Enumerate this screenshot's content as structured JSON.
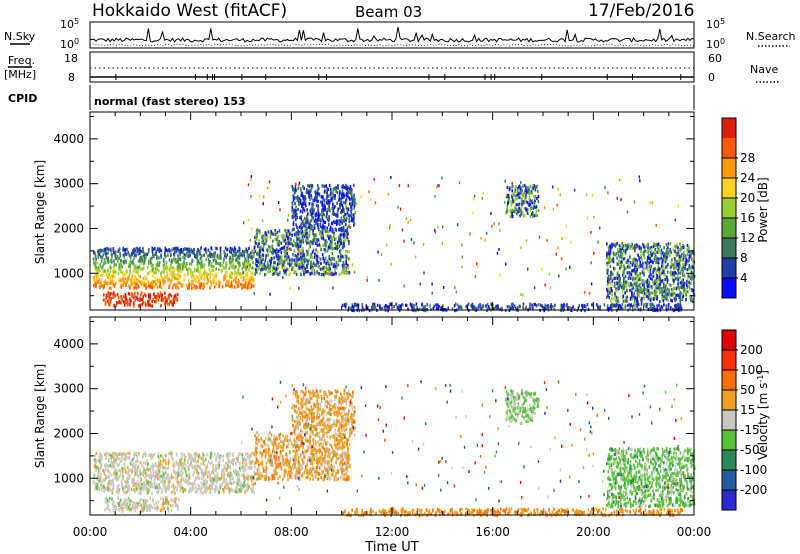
{
  "header": {
    "site": "Hokkaido West (fitACF)",
    "beam": "Beam 03",
    "date": "17/Feb/2016"
  },
  "noise_panel": {
    "left_label": "N.Sky",
    "right_label": "N.Search",
    "tick_top": "10^5",
    "tick_bottom": "10^0"
  },
  "freq_panel": {
    "label_line1": "Freq.",
    "label_line2": "[MHz]",
    "right_label": "Nave",
    "left_ticks": [
      "18",
      "8"
    ],
    "right_ticks": [
      "60",
      "0"
    ]
  },
  "cpid": {
    "label": "CPID",
    "text": "normal (fast stereo) 153"
  },
  "chart_data": [
    {
      "type": "heatmap",
      "quantity": "Power",
      "ylabel": "Slant Range [km]",
      "xlabel": "Time UT",
      "x_ticks": [
        "00:00",
        "04:00",
        "08:00",
        "12:00",
        "16:00",
        "20:00",
        "00:00"
      ],
      "xlim_hours": [
        0,
        24
      ],
      "ylim_km": [
        180,
        4600
      ],
      "y_ticks": [
        1000,
        2000,
        3000,
        4000
      ],
      "colorbar": {
        "label": "Power [dB]",
        "ticks": [
          "4",
          "8",
          "12",
          "16",
          "20",
          "24",
          "28"
        ],
        "range": [
          0,
          30
        ],
        "colors": [
          "#0a0aff",
          "#1f3ea8",
          "#3c7a5e",
          "#5aa83c",
          "#9acd32",
          "#ffd21f",
          "#ff9b00",
          "#ff5a00",
          "#e01e0a"
        ]
      },
      "echo_regions": [
        {
          "t": [
            0.1,
            6.5
          ],
          "range_km": [
            700,
            1600
          ],
          "level": "high"
        },
        {
          "t": [
            0.5,
            3.5
          ],
          "range_km": [
            300,
            600
          ],
          "level": "very-high"
        },
        {
          "t": [
            6.5,
            10.3
          ],
          "range_km": [
            1000,
            2000
          ],
          "level": "medium"
        },
        {
          "t": [
            8.0,
            10.5
          ],
          "range_km": [
            2000,
            3000
          ],
          "level": "low"
        },
        {
          "t": [
            16.5,
            17.8
          ],
          "range_km": [
            2300,
            3000
          ],
          "level": "medium"
        },
        {
          "t": [
            20.5,
            24.0
          ],
          "range_km": [
            400,
            1700
          ],
          "level": "medium"
        },
        {
          "t": [
            10.0,
            23.5
          ],
          "range_km": [
            200,
            350
          ],
          "level": "low"
        }
      ]
    },
    {
      "type": "heatmap",
      "quantity": "Velocity",
      "ylabel": "Slant Range [km]",
      "xlabel": "Time UT",
      "x_ticks": [
        "00:00",
        "04:00",
        "08:00",
        "12:00",
        "16:00",
        "20:00",
        "00:00"
      ],
      "xlim_hours": [
        0,
        24
      ],
      "ylim_km": [
        180,
        4600
      ],
      "y_ticks": [
        1000,
        2000,
        3000,
        4000
      ],
      "colorbar": {
        "label": "Velocity [m s^-1]",
        "ticks": [
          "200",
          "100",
          "50",
          "15",
          "-15",
          "-50",
          "-100",
          "-200"
        ],
        "range": [
          -250,
          250
        ],
        "colors": [
          "#2a2acf",
          "#1f5fa0",
          "#2a8a55",
          "#58c23a",
          "#c8c8c0",
          "#f0a020",
          "#ff7000",
          "#ff3000",
          "#e00000"
        ]
      },
      "echo_regions": [
        {
          "t": [
            0.1,
            6.5
          ],
          "range_km": [
            700,
            1600
          ],
          "level": "near-zero"
        },
        {
          "t": [
            0.5,
            3.5
          ],
          "range_km": [
            300,
            600
          ],
          "level": "near-zero"
        },
        {
          "t": [
            6.5,
            10.3
          ],
          "range_km": [
            1000,
            2000
          ],
          "level": "slightly-negative"
        },
        {
          "t": [
            8.0,
            10.5
          ],
          "range_km": [
            2000,
            3000
          ],
          "level": "slightly-negative"
        },
        {
          "t": [
            16.5,
            17.8
          ],
          "range_km": [
            2300,
            3000
          ],
          "level": "slightly-positive"
        },
        {
          "t": [
            20.5,
            24.0
          ],
          "range_km": [
            400,
            1700
          ],
          "level": "positive"
        },
        {
          "t": [
            10.0,
            23.5
          ],
          "range_km": [
            200,
            350
          ],
          "level": "negative"
        }
      ]
    }
  ]
}
